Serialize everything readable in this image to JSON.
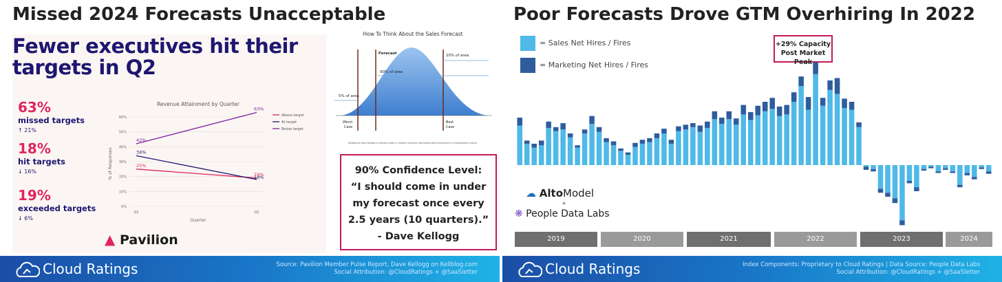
{
  "left": {
    "title": "Missed 2024 Forecasts Unacceptable",
    "pavilion": {
      "headline": "Fewer executives hit their targets in Q2",
      "stats": [
        {
          "value": "63%",
          "label": "missed targets",
          "change": "↑ 21%"
        },
        {
          "value": "18%",
          "label": "hit targets",
          "change": "↓ 16%"
        },
        {
          "value": "19%",
          "label": "exceeded targets",
          "change": "↓ 6%"
        }
      ],
      "logo": "Pavilion"
    },
    "bell": {
      "title": "How To Think About the Sales Forecast",
      "labels": {
        "forecast": "Forecast",
        "p20": "20% of area",
        "p90": "90% of area",
        "p5": "5% of area",
        "worst1": "Worst",
        "worst2": "Case",
        "best1": "Best",
        "best2": "Case"
      },
      "credit": "Kellblog by Dave Kellogg is licensed under a Creative Commons Attribution-NonCommercial 4.0 International License."
    },
    "quote": {
      "lines": [
        "90% Confidence Level:",
        "“I should come in under",
        "my forecast once every",
        "2.5 years (10 quarters).”",
        "- Dave Kellogg"
      ]
    },
    "footer": {
      "brand_bold": "Cloud",
      "brand_light": " Ratings",
      "src1": "Source: Pavilion Member Pulse Report, Dave Kellogg on Kellblog.com",
      "src2": "Social Attribution: @CloudRatings + @SaaSletter"
    }
  },
  "right": {
    "title": "Poor Forecasts Drove GTM Overhiring In 2022",
    "legend": [
      {
        "label": "= Sales Net Hires / Fires",
        "color": "#4fb9e8"
      },
      {
        "label": "= Marketing Net Hires / Fires",
        "color": "#2f5c9c"
      }
    ],
    "annotation": [
      "+29% Capacity",
      "Post Market Peak"
    ],
    "alto": {
      "bold": "Alto",
      "light": "Model"
    },
    "plus": "+",
    "pdl": "People Data Labs",
    "years": [
      "2019",
      "2020",
      "2021",
      "2022",
      "2023",
      "2024"
    ],
    "footer": {
      "brand_bold": "Cloud",
      "brand_light": " Ratings",
      "src1": "Index Components: Proprietary to Cloud Ratings | Data Source: People Data Labs",
      "src2": "Social Attribution: @CloudRatings + @SaaSletter"
    }
  },
  "chart_data": [
    {
      "type": "line",
      "title": "Revenue Attainment by Quarter",
      "xlabel": "Quarter",
      "ylabel": "% of Responses",
      "categories": [
        "Q1",
        "Q2"
      ],
      "ylim": [
        0,
        60
      ],
      "yticks": [
        "0%",
        "10%",
        "20%",
        "30%",
        "40%",
        "50%",
        "60%"
      ],
      "series": [
        {
          "name": "Above target",
          "values": [
            25,
            19
          ],
          "labels": [
            "25%",
            "19%"
          ],
          "color": "#e0255f"
        },
        {
          "name": "At target",
          "values": [
            34,
            18
          ],
          "labels": [
            "34%",
            "18%"
          ],
          "color": "#1e1670"
        },
        {
          "name": "Below target",
          "values": [
            42,
            63
          ],
          "labels": [
            "42%",
            "63%"
          ],
          "color": "#7b1fa2"
        }
      ]
    },
    {
      "type": "bar",
      "stacked": true,
      "x": [
        "2019-01",
        "2019-02",
        "2019-03",
        "2019-04",
        "2019-05",
        "2019-06",
        "2019-07",
        "2019-08",
        "2019-09",
        "2019-10",
        "2019-11",
        "2019-12",
        "2020-01",
        "2020-02",
        "2020-03",
        "2020-04",
        "2020-05",
        "2020-06",
        "2020-07",
        "2020-08",
        "2020-09",
        "2020-10",
        "2020-11",
        "2020-12",
        "2021-01",
        "2021-02",
        "2021-03",
        "2021-04",
        "2021-05",
        "2021-06",
        "2021-07",
        "2021-08",
        "2021-09",
        "2021-10",
        "2021-11",
        "2021-12",
        "2022-01",
        "2022-02",
        "2022-03",
        "2022-04",
        "2022-05",
        "2022-06",
        "2022-07",
        "2022-08",
        "2022-09",
        "2022-10",
        "2022-11",
        "2022-12",
        "2023-01",
        "2023-02",
        "2023-03",
        "2023-04",
        "2023-05",
        "2023-06",
        "2023-07",
        "2023-08",
        "2023-09",
        "2023-10",
        "2023-11",
        "2023-12",
        "2024-01",
        "2024-02",
        "2024-03",
        "2024-04",
        "2024-05",
        "2024-06"
      ],
      "series": [
        {
          "name": "Sales Net Hires / Fires",
          "values": [
            50,
            27,
            22,
            25,
            47,
            43,
            45,
            35,
            22,
            40,
            52,
            42,
            29,
            25,
            18,
            13,
            23,
            27,
            29,
            34,
            40,
            27,
            43,
            45,
            48,
            42,
            47,
            58,
            52,
            58,
            51,
            64,
            57,
            63,
            68,
            71,
            62,
            64,
            80,
            100,
            70,
            115,
            75,
            95,
            90,
            72,
            70,
            48,
            -2,
            -5,
            -30,
            -35,
            -42,
            -70,
            -20,
            -28,
            -5,
            -2,
            -8,
            -4,
            -8,
            -25,
            -10,
            -15,
            -3,
            -8
          ]
        },
        {
          "name": "Marketing Net Hires / Fires",
          "values": [
            10,
            4,
            5,
            6,
            8,
            5,
            8,
            5,
            3,
            5,
            10,
            6,
            5,
            5,
            3,
            3,
            5,
            5,
            5,
            6,
            6,
            5,
            6,
            6,
            5,
            8,
            8,
            10,
            8,
            10,
            8,
            12,
            10,
            12,
            12,
            14,
            12,
            12,
            12,
            12,
            16,
            15,
            10,
            12,
            20,
            12,
            10,
            6,
            -4,
            -3,
            -5,
            -5,
            -6,
            -6,
            -3,
            -5,
            -2,
            -2,
            -2,
            -2,
            -2,
            -3,
            -3,
            -3,
            -2,
            -3
          ]
        }
      ]
    }
  ]
}
